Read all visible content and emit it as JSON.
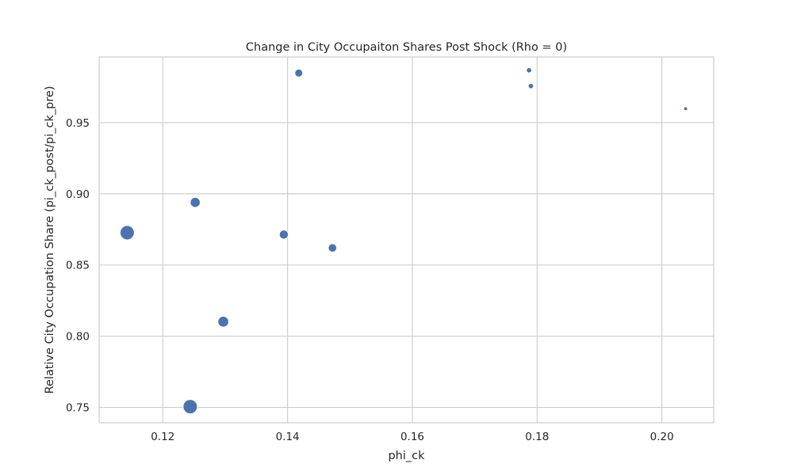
{
  "chart_data": {
    "type": "scatter",
    "title": "Change in City Occupaiton Shares Post Shock (Rho = 0)",
    "xlabel": "phi_ck",
    "ylabel": "Relative City Occupation Share (pi_ck_post/pi_ck_pre)",
    "xlim": [
      0.1098,
      0.2083
    ],
    "ylim": [
      0.7392,
      0.9961
    ],
    "x_ticks": [
      0.12,
      0.14,
      0.16,
      0.18,
      0.2
    ],
    "x_tick_labels": [
      "0.12",
      "0.14",
      "0.16",
      "0.18",
      "0.20"
    ],
    "y_ticks": [
      0.75,
      0.8,
      0.85,
      0.9,
      0.95
    ],
    "y_tick_labels": [
      "0.75",
      "0.80",
      "0.85",
      "0.90",
      "0.95"
    ],
    "grid": true,
    "legend": "none",
    "color": "#4c72b0",
    "points": [
      {
        "x": 0.1143,
        "y": 0.8727,
        "size": 9.0
      },
      {
        "x": 0.1244,
        "y": 0.7505,
        "size": 9.0
      },
      {
        "x": 0.1252,
        "y": 0.894,
        "size": 6.3
      },
      {
        "x": 0.1297,
        "y": 0.8102,
        "size": 6.8
      },
      {
        "x": 0.1394,
        "y": 0.8714,
        "size": 5.7
      },
      {
        "x": 0.1418,
        "y": 0.9848,
        "size": 5.0
      },
      {
        "x": 0.1472,
        "y": 0.862,
        "size": 5.3
      },
      {
        "x": 0.1787,
        "y": 0.9868,
        "size": 3.3
      },
      {
        "x": 0.179,
        "y": 0.9757,
        "size": 3.3
      },
      {
        "x": 0.2038,
        "y": 0.9598,
        "size": 2.4
      }
    ]
  }
}
